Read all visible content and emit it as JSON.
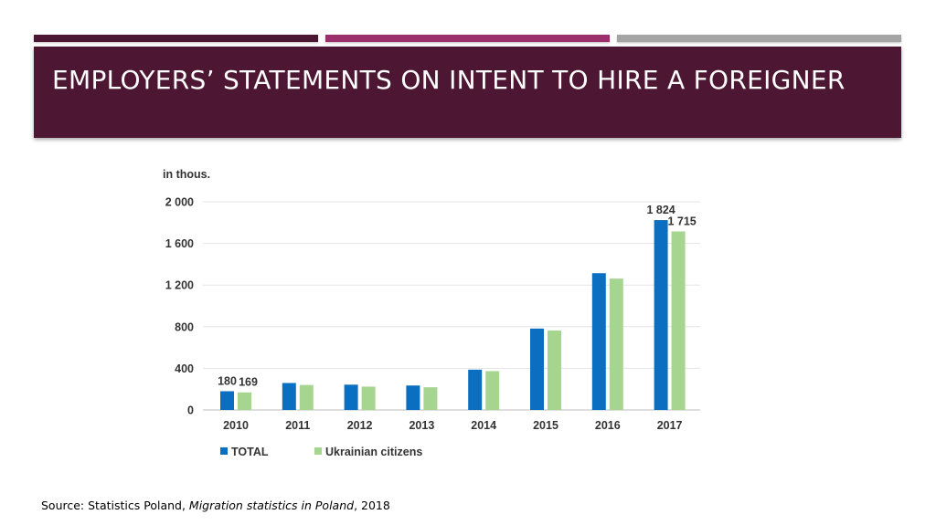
{
  "slide": {
    "title": "EMPLOYERS’ STATEMENTS ON INTENT TO HIRE A FOREIGNER",
    "source_prefix": "Source:  Statistics Poland, ",
    "source_title": "Migration statistics in Poland",
    "source_suffix": ", 2018"
  },
  "colors": {
    "banner": "#4d1734",
    "stripe_1": "#4c1732",
    "stripe_2": "#9b2f6b",
    "stripe_3": "#a4a4a4",
    "total": "#0b6fc1",
    "ukrainian": "#a6d58f"
  },
  "chart_data": {
    "type": "bar",
    "unit_label": "in thous.",
    "categories": [
      "2010",
      "2011",
      "2012",
      "2013",
      "2014",
      "2015",
      "2016",
      "2017"
    ],
    "series": [
      {
        "name": "TOTAL",
        "color": "#0b6fc1",
        "values": [
          180,
          259,
          243,
          235,
          387,
          782,
          1314,
          1824
        ]
      },
      {
        "name": "Ukrainian citizens",
        "color": "#a6d58f",
        "values": [
          169,
          240,
          224,
          218,
          373,
          763,
          1262,
          1715
        ]
      }
    ],
    "data_labels": [
      {
        "series": 0,
        "index": 0,
        "text": "180"
      },
      {
        "series": 1,
        "index": 0,
        "text": "169"
      },
      {
        "series": 0,
        "index": 7,
        "text": "1 824"
      },
      {
        "series": 1,
        "index": 7,
        "text": "1 715"
      }
    ],
    "yticks": [
      0,
      400,
      800,
      1200,
      1600,
      2000
    ],
    "ytick_labels": [
      "0",
      "400",
      "800",
      "1 200",
      "1 600",
      "2 000"
    ],
    "ylim": [
      0,
      2000
    ],
    "grid": true,
    "legend_position": "bottom-left"
  }
}
